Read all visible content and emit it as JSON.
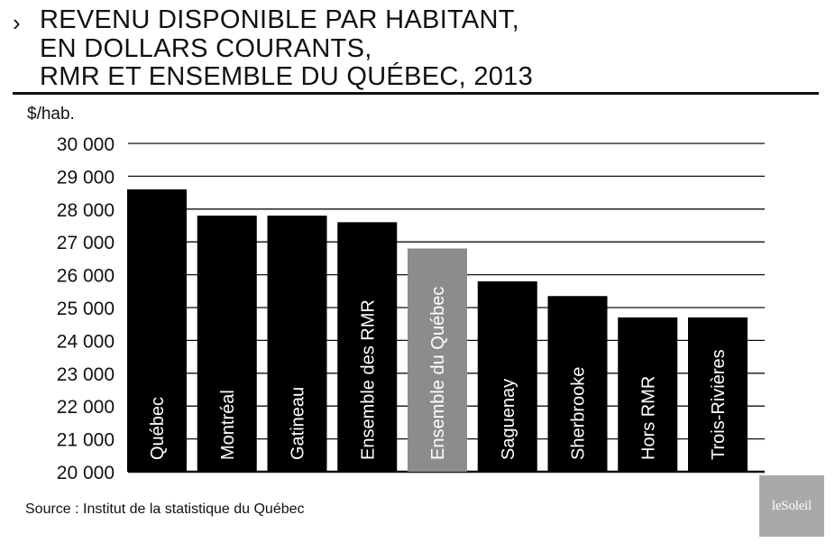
{
  "title": {
    "arrow": "›",
    "lines": [
      "REVENU DISPONIBLE PAR HABITANT,",
      "EN DOLLARS COURANTS,",
      "RMR ET ENSEMBLE DU QUÉBEC, 2013"
    ]
  },
  "source": "Source : Institut de la statistique du Québec",
  "logo_text": "leSoleil",
  "colors": {
    "bar": "#000000",
    "highlight_bar": "#8c8c8c",
    "gridline": "#111111",
    "logo_background": "#a9a9a9"
  },
  "chart_data": {
    "type": "bar",
    "unit_label": "$/hab.",
    "categories": [
      "Québec",
      "Montréal",
      "Gatineau",
      "Ensemble des RMR",
      "Ensemble du Québec",
      "Saguenay",
      "Sherbrooke",
      "Hors RMR",
      "Trois-Rivières"
    ],
    "values": [
      28600,
      27800,
      27800,
      27600,
      26800,
      25800,
      25350,
      24700,
      24700
    ],
    "highlighted_category": "Ensemble du Québec",
    "ylim": [
      20000,
      30000
    ],
    "y_ticks": [
      20000,
      21000,
      22000,
      23000,
      24000,
      25000,
      26000,
      27000,
      28000,
      29000,
      30000
    ],
    "y_tick_labels": [
      "20 000",
      "21 000",
      "22 000",
      "23 000",
      "24 000",
      "25 000",
      "26 000",
      "27 000",
      "28 000",
      "29 000",
      "30 000"
    ],
    "grid": true,
    "legend": "none",
    "bar_labels": "inside-bar-vertical"
  }
}
